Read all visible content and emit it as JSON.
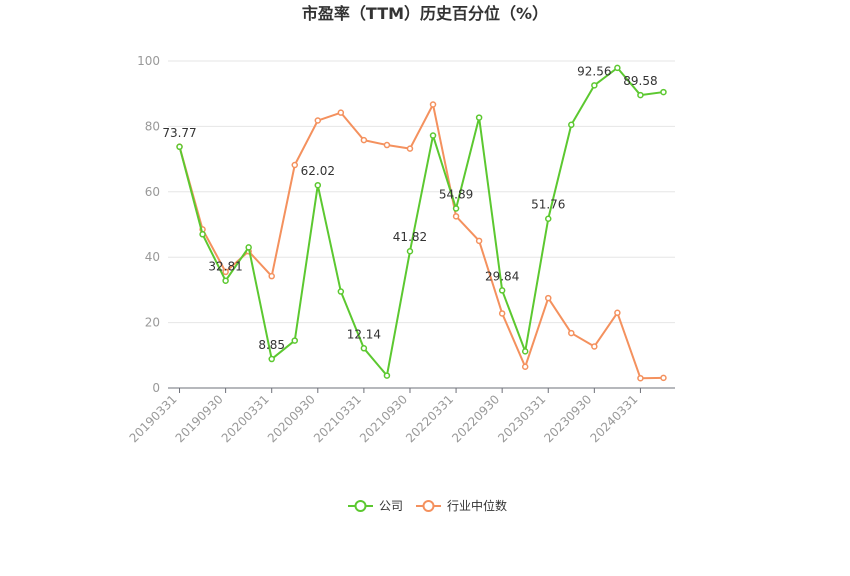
{
  "chart_data": {
    "type": "line",
    "title": "市盈率（TTM）历史百分位（%）",
    "xlabel": "",
    "ylabel": "",
    "ylim": [
      0,
      100
    ],
    "yticks": [
      0,
      20,
      40,
      60,
      80,
      100
    ],
    "grid": true,
    "legend_position": "bottom",
    "x_tick_labels": [
      "20190331",
      "20190930",
      "20200331",
      "20200930",
      "20210331",
      "20210930",
      "20220331",
      "20220930",
      "20230331",
      "20230930",
      "20240331"
    ],
    "x": [
      "20190331",
      "20190630",
      "20190930",
      "20191231",
      "20200331",
      "20200630",
      "20200930",
      "20201231",
      "20210331",
      "20210630",
      "20210930",
      "20211231",
      "20220331",
      "20220630",
      "20220930",
      "20221231",
      "20230331",
      "20230630",
      "20230930",
      "20231231",
      "20240331",
      "20240630"
    ],
    "series": [
      {
        "name": "公司",
        "color": "#5cc830",
        "values": [
          73.77,
          47,
          32.81,
          43,
          8.85,
          14.5,
          62.02,
          29.5,
          12.14,
          3.8,
          41.82,
          77.2,
          54.89,
          82.7,
          29.84,
          11.2,
          51.76,
          80.5,
          92.56,
          97.9,
          89.58,
          90.5
        ],
        "labels": {
          "0": "73.77",
          "2": "32.81",
          "4": "8.85",
          "6": "62.02",
          "8": "12.14",
          "10": "41.82",
          "12": "54.89",
          "14": "29.84",
          "16": "51.76",
          "18": "92.56",
          "20": "89.58"
        }
      },
      {
        "name": "行业中位数",
        "color": "#f4915e",
        "values": [
          73.8,
          48.5,
          35.5,
          41.8,
          34.2,
          68.2,
          81.8,
          84.2,
          75.8,
          74.3,
          73.2,
          86.7,
          52.5,
          45,
          22.8,
          6.5,
          27.5,
          16.8,
          12.7,
          23,
          3,
          3.1
        ]
      }
    ]
  }
}
